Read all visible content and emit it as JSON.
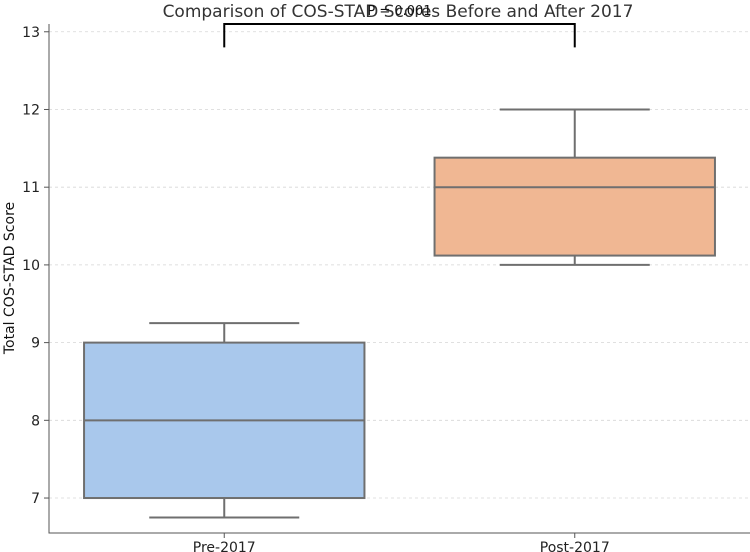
{
  "chart_data": {
    "type": "box",
    "title": "Comparison of COS-STAD Scores Before and After 2017",
    "xlabel": "",
    "ylabel": "Total COS-STAD Score",
    "ylim": [
      6.55,
      13.1
    ],
    "yticks": [
      7,
      8,
      9,
      10,
      11,
      12,
      13
    ],
    "grid": true,
    "categories": [
      "Pre-2017",
      "Post-2017"
    ],
    "boxes": [
      {
        "name": "Pre-2017",
        "whisker_low": 6.75,
        "q1": 7,
        "median": 8,
        "q3": 9,
        "whisker_high": 9.25,
        "color": "#a9c8ec"
      },
      {
        "name": "Post-2017",
        "whisker_low": 10,
        "q1": 10.12,
        "median": 11,
        "q3": 11.38,
        "whisker_high": 12,
        "color": "#f0b793"
      }
    ],
    "annotation": {
      "text": "P = 0.001",
      "between": [
        "Pre-2017",
        "Post-2017"
      ],
      "y": 12.8,
      "height": 0.3
    }
  }
}
